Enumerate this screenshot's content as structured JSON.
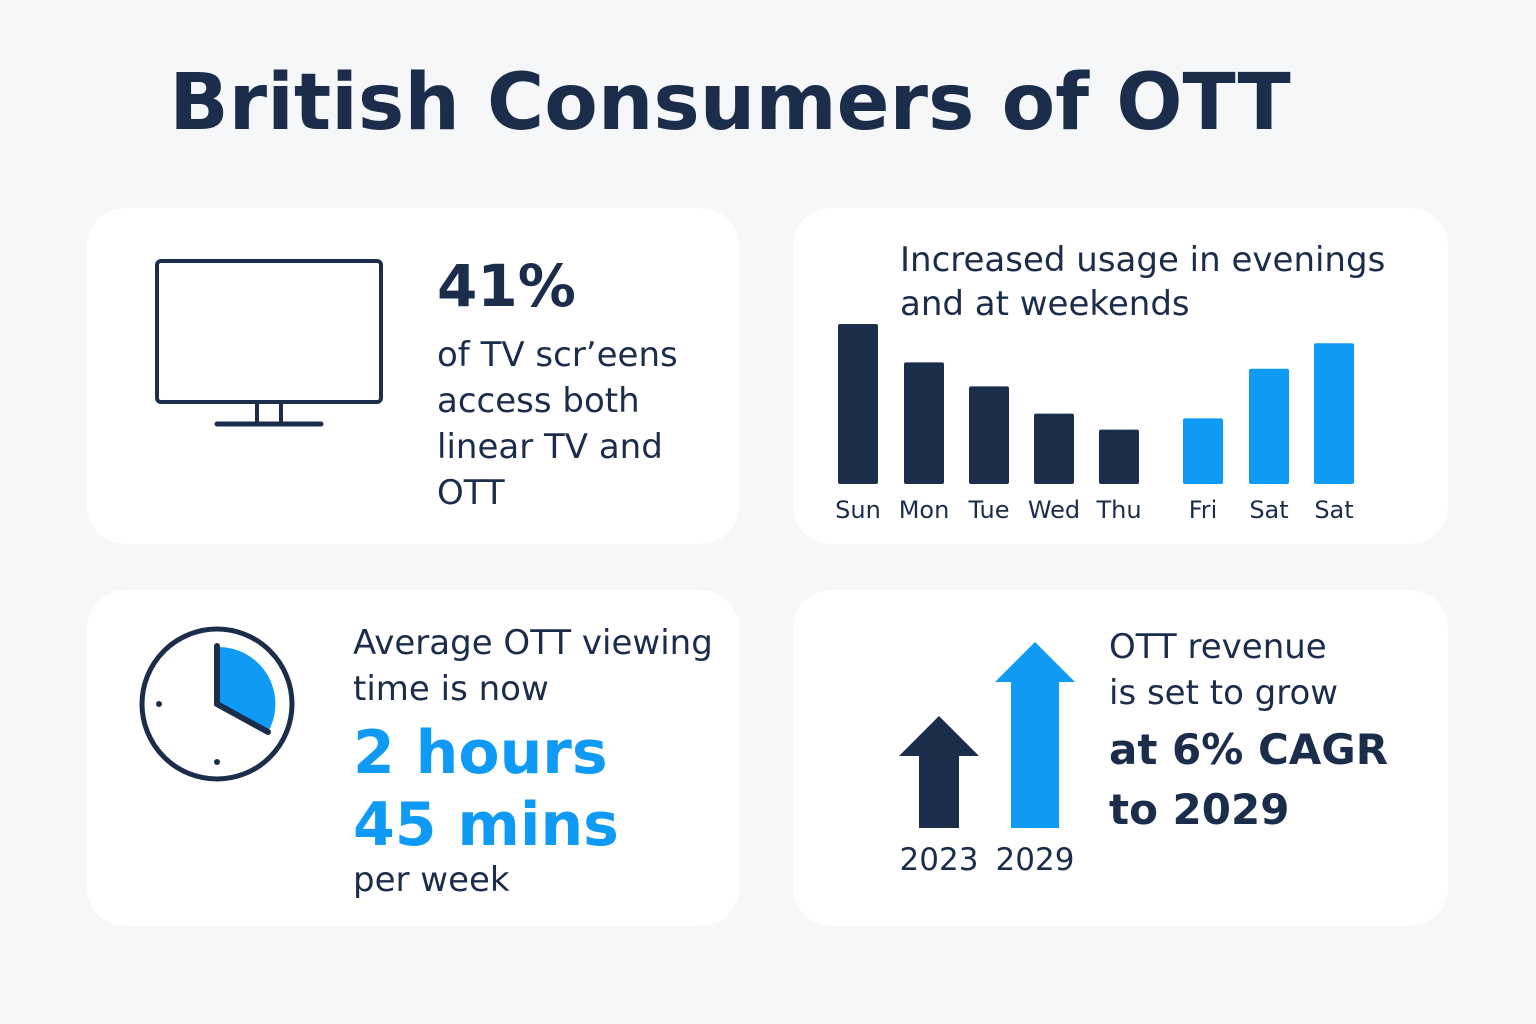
{
  "title": "British Consumers of OTT",
  "colors": {
    "navy": "#1b2d4a",
    "accent": "#0e9af5",
    "card": "#ffffff",
    "background": "#f6f7f8"
  },
  "tv_card": {
    "icon": "tv-icon",
    "stat": "41%",
    "line1": "of TV scr’eens",
    "line2": "access both",
    "line3": "linear TV and",
    "line4": "OTT"
  },
  "usage_card": {
    "title_line1": "Increased usage in evenings",
    "title_line2": "and at weekends"
  },
  "chart_data": {
    "type": "bar",
    "categories": [
      "Sun",
      "Mon",
      "Tue",
      "Wed",
      "Thu",
      "Fri",
      "Sat",
      "Sat"
    ],
    "values": [
      100,
      76,
      61,
      44,
      34,
      41,
      72,
      88
    ],
    "highlight": [
      false,
      false,
      false,
      false,
      false,
      true,
      true,
      true
    ],
    "title": "Increased usage in evenings and at weekends",
    "ylim": [
      0,
      100
    ],
    "grid": false
  },
  "time_card": {
    "icon": "clock-icon",
    "line1": "Average OTT viewing",
    "line2": "time is now",
    "big1": "2 hours",
    "big2": "45 mins",
    "foot": "per week"
  },
  "revenue_card": {
    "icon": "growth-arrows-icon",
    "year_start": "2023",
    "year_end": "2029",
    "line1": "OTT revenue",
    "line2": "is set to grow",
    "bold1": "at 6% CAGR",
    "bold2": "to 2029"
  }
}
